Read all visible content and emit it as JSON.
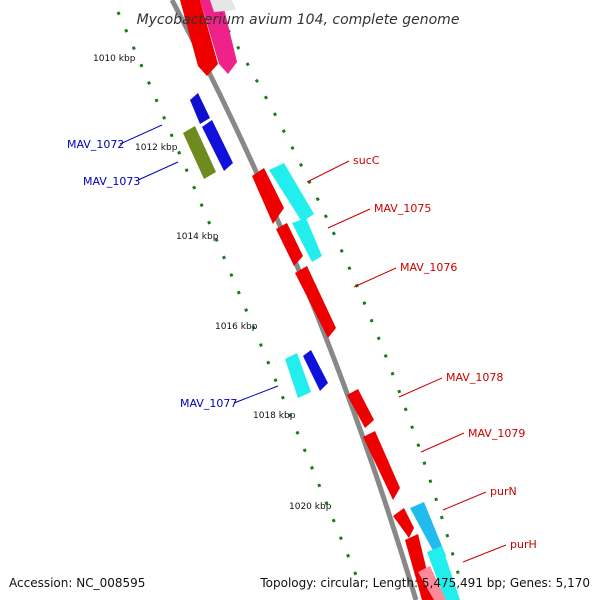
{
  "title": "Mycobacterium avium 104, complete genome",
  "footer": {
    "accession": "Accession: NC_008595",
    "topology": "Topology: circular; Length: 5,475,491 bp; Genes: 5,170"
  },
  "colors": {
    "backbone": "#888888",
    "tick": "#1a7a1a",
    "label_red": "#cc0000",
    "label_blue": "#0000bb"
  },
  "ruler_labels": [
    "1010 kbp",
    "1012 kbp",
    "1014 kbp",
    "1016 kbp",
    "1018 kbp",
    "1020 kbp"
  ],
  "gene_labels": {
    "MAV_1072": "MAV_1072",
    "MAV_1073": "MAV_1073",
    "MAV_1077": "MAV_1077",
    "sucC": "sucC",
    "MAV_1075": "MAV_1075",
    "MAV_1076": "MAV_1076",
    "MAV_1078": "MAV_1078",
    "MAV_1079": "MAV_1079",
    "purN": "purN",
    "purH": "purH"
  }
}
